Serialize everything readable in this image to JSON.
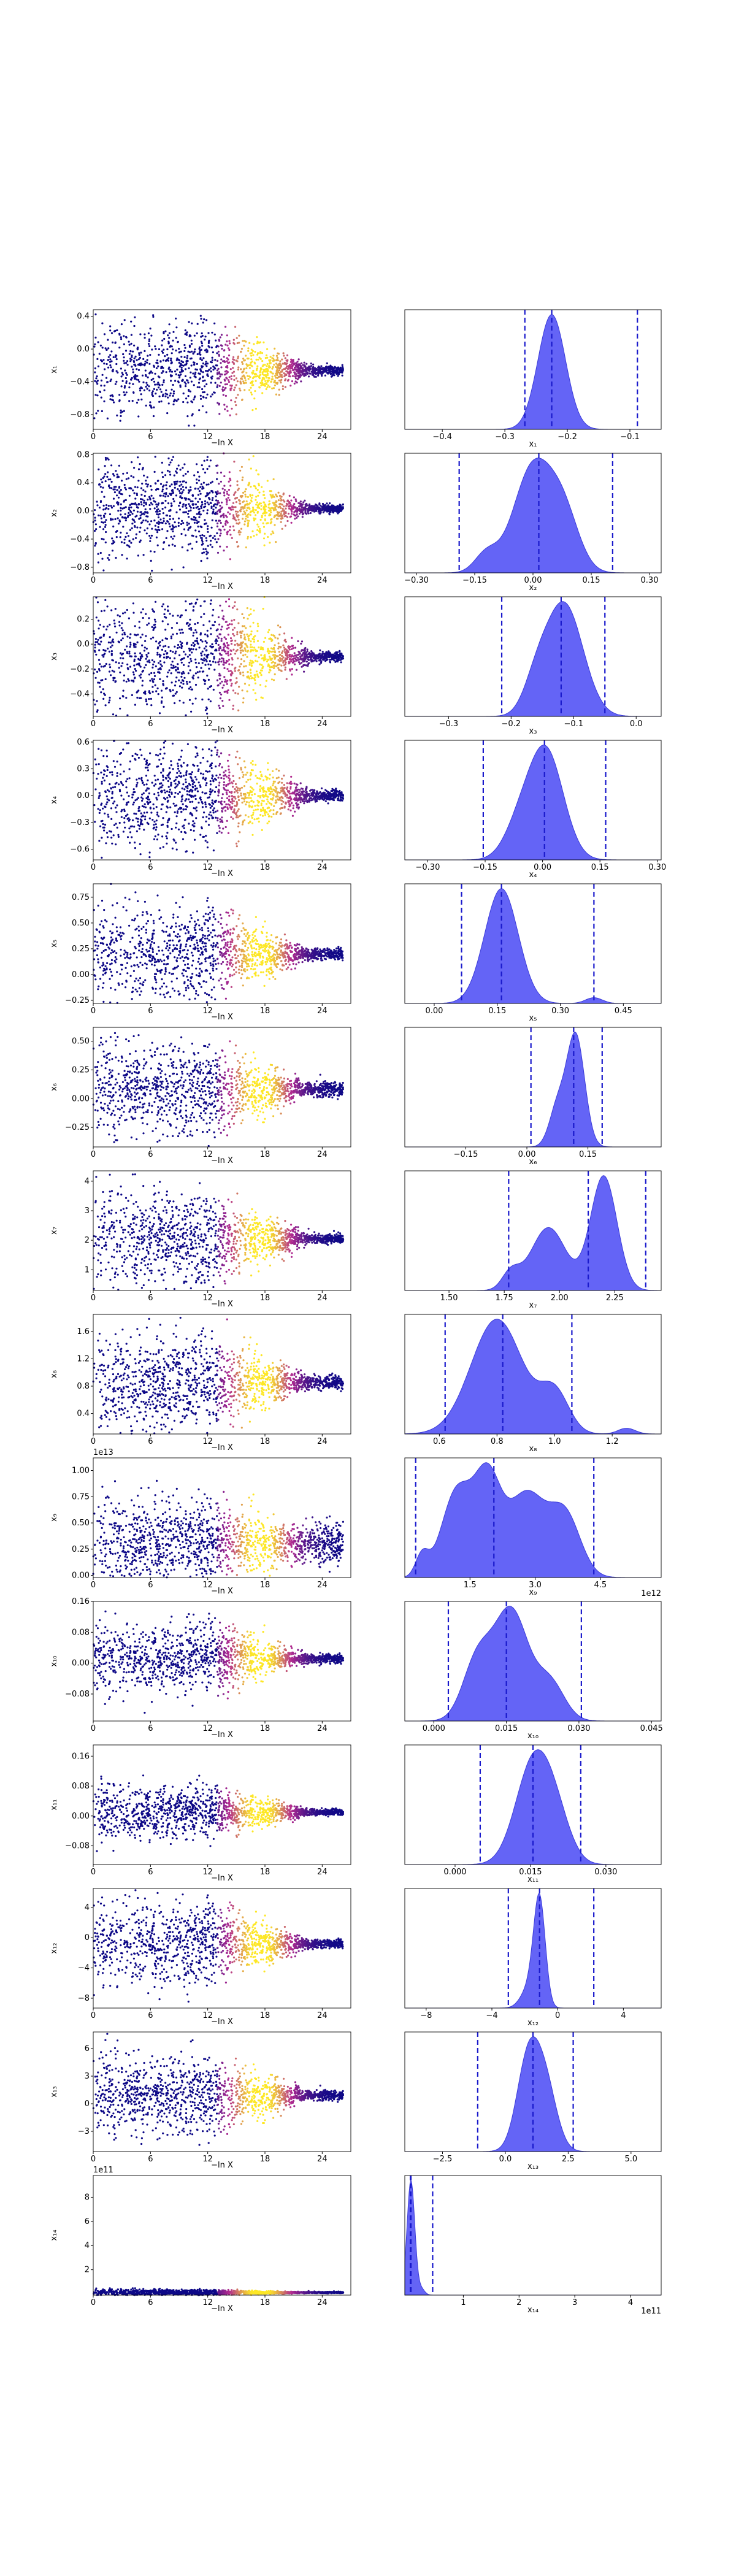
{
  "chart_data": {
    "type": "trace-and-posterior-grid",
    "colors": {
      "trace_low": "#0d0887",
      "trace_mid": "#b12a90",
      "trace_high": "#fde725",
      "kde_fill": "#4f4ff5",
      "kde_edge": "#3b3bd8",
      "vline": "#1a1acc"
    },
    "trace_xlabel": "−ln X",
    "trace_xticks": [
      "0",
      "6",
      "12",
      "18",
      "24"
    ],
    "trace_xlim": [
      0,
      27
    ],
    "rows": [
      {
        "ylabel": "x₁",
        "yticks": [
          "0.4",
          "0.0",
          "−0.4",
          "−0.8"
        ],
        "ytick_values": [
          0.4,
          0.0,
          -0.4,
          -0.8
        ],
        "ylim": [
          -0.98,
          0.48
        ],
        "trace_center": -0.26,
        "trace_spread": 0.28,
        "trace_final_spread": 0.03,
        "trace_sci": "",
        "posterior_xlabel": "x₁",
        "posterior_xticks": [
          "−0.4",
          "−0.3",
          "−0.2",
          "−0.1"
        ],
        "posterior_xtick_values": [
          -0.4,
          -0.3,
          -0.2,
          -0.1
        ],
        "posterior_xlim": [
          -0.46,
          -0.05
        ],
        "posterior_sci": "",
        "kde_peaks": [
          {
            "mu": -0.225,
            "sigma": 0.022,
            "w": 1.0
          }
        ],
        "kde_lines": [
          -0.268,
          -0.225,
          -0.088
        ]
      },
      {
        "ylabel": "x₂",
        "yticks": [
          "0.8",
          "0.4",
          "0.0",
          "−0.4",
          "−0.8"
        ],
        "ytick_values": [
          0.8,
          0.4,
          0.0,
          -0.4,
          -0.8
        ],
        "ylim": [
          -0.88,
          0.82
        ],
        "trace_center": 0.03,
        "trace_spread": 0.35,
        "trace_final_spread": 0.03,
        "trace_sci": "",
        "posterior_xlabel": "x₂",
        "posterior_xticks": [
          "−0.30",
          "−0.15",
          "0.00",
          "0.15",
          "0.30"
        ],
        "posterior_xtick_values": [
          -0.3,
          -0.15,
          0.0,
          0.15,
          0.3
        ],
        "posterior_xlim": [
          -0.33,
          0.33
        ],
        "posterior_sci": "",
        "kde_peaks": [
          {
            "mu": 0.0,
            "sigma": 0.05,
            "w": 1.0
          },
          {
            "mu": 0.08,
            "sigma": 0.04,
            "w": 0.5
          },
          {
            "mu": -0.12,
            "sigma": 0.03,
            "w": 0.18
          }
        ],
        "kde_lines": [
          -0.19,
          0.015,
          0.205
        ]
      },
      {
        "ylabel": "x₃",
        "yticks": [
          "0.2",
          "0.0",
          "−0.2",
          "−0.4"
        ],
        "ytick_values": [
          0.2,
          0.0,
          -0.2,
          -0.4
        ],
        "ylim": [
          -0.58,
          0.38
        ],
        "trace_center": -0.1,
        "trace_spread": 0.25,
        "trace_final_spread": 0.02,
        "trace_sci": "",
        "posterior_xlabel": "x₃",
        "posterior_xticks": [
          "−0.3",
          "−0.2",
          "−0.1",
          "0.0"
        ],
        "posterior_xtick_values": [
          -0.3,
          -0.2,
          -0.1,
          0.0
        ],
        "posterior_xlim": [
          -0.37,
          0.04
        ],
        "posterior_sci": "",
        "kde_peaks": [
          {
            "mu": -0.115,
            "sigma": 0.03,
            "w": 1.0
          },
          {
            "mu": -0.16,
            "sigma": 0.02,
            "w": 0.25
          }
        ],
        "kde_lines": [
          -0.215,
          -0.12,
          -0.05
        ]
      },
      {
        "ylabel": "x₄",
        "yticks": [
          "0.6",
          "0.3",
          "0.0",
          "−0.3",
          "−0.6"
        ],
        "ytick_values": [
          0.6,
          0.3,
          0.0,
          -0.3,
          -0.6
        ],
        "ylim": [
          -0.72,
          0.62
        ],
        "trace_center": 0.0,
        "trace_spread": 0.3,
        "trace_final_spread": 0.03,
        "trace_sci": "",
        "posterior_xlabel": "x₄",
        "posterior_xticks": [
          "−0.30",
          "−0.15",
          "0.00",
          "0.15",
          "0.30"
        ],
        "posterior_xtick_values": [
          -0.3,
          -0.15,
          0.0,
          0.15,
          0.3
        ],
        "posterior_xlim": [
          -0.36,
          0.31
        ],
        "posterior_sci": "",
        "kde_peaks": [
          {
            "mu": 0.01,
            "sigma": 0.045,
            "w": 1.0
          },
          {
            "mu": -0.06,
            "sigma": 0.04,
            "w": 0.3
          }
        ],
        "kde_lines": [
          -0.155,
          0.005,
          0.165
        ]
      },
      {
        "ylabel": "x₅",
        "yticks": [
          "0.75",
          "0.50",
          "0.25",
          "0.00",
          "−0.25"
        ],
        "ytick_values": [
          0.75,
          0.5,
          0.25,
          0.0,
          -0.25
        ],
        "ylim": [
          -0.28,
          0.88
        ],
        "trace_center": 0.2,
        "trace_spread": 0.22,
        "trace_final_spread": 0.03,
        "trace_sci": "",
        "posterior_xlabel": "x₅",
        "posterior_xticks": [
          "0.00",
          "0.15",
          "0.30",
          "0.45"
        ],
        "posterior_xtick_values": [
          0.0,
          0.15,
          0.3,
          0.45
        ],
        "posterior_xlim": [
          -0.07,
          0.54
        ],
        "posterior_sci": "",
        "kde_peaks": [
          {
            "mu": 0.16,
            "sigma": 0.04,
            "w": 1.0
          },
          {
            "mu": 0.38,
            "sigma": 0.02,
            "w": 0.05
          }
        ],
        "kde_lines": [
          0.065,
          0.16,
          0.38
        ]
      },
      {
        "ylabel": "x₆",
        "yticks": [
          "0.50",
          "0.25",
          "0.00",
          "−0.25"
        ],
        "ytick_values": [
          0.5,
          0.25,
          0.0,
          -0.25
        ],
        "ylim": [
          -0.42,
          0.62
        ],
        "trace_center": 0.08,
        "trace_spread": 0.2,
        "trace_final_spread": 0.03,
        "trace_sci": "",
        "posterior_xlabel": "x₆",
        "posterior_xticks": [
          "−0.15",
          "0.00",
          "0.15"
        ],
        "posterior_xtick_values": [
          -0.15,
          0.0,
          0.15
        ],
        "posterior_xlim": [
          -0.3,
          0.33
        ],
        "posterior_sci": "",
        "kde_peaks": [
          {
            "mu": 0.12,
            "sigma": 0.022,
            "w": 1.0
          },
          {
            "mu": 0.075,
            "sigma": 0.02,
            "w": 0.35
          }
        ],
        "kde_lines": [
          0.01,
          0.115,
          0.185
        ]
      },
      {
        "ylabel": "x₇",
        "yticks": [
          "4",
          "3",
          "2",
          "1"
        ],
        "ytick_values": [
          4,
          3,
          2,
          1
        ],
        "ylim": [
          0.3,
          4.35
        ],
        "trace_center": 2.05,
        "trace_spread": 0.75,
        "trace_final_spread": 0.08,
        "trace_sci": "",
        "posterior_xlabel": "x₇",
        "posterior_xticks": [
          "1.50",
          "1.75",
          "2.00",
          "2.25"
        ],
        "posterior_xtick_values": [
          1.5,
          1.75,
          2.0,
          2.25
        ],
        "posterior_xlim": [
          1.3,
          2.46
        ],
        "posterior_sci": "",
        "kde_peaks": [
          {
            "mu": 2.2,
            "sigma": 0.06,
            "w": 1.0
          },
          {
            "mu": 1.95,
            "sigma": 0.08,
            "w": 0.55
          },
          {
            "mu": 1.78,
            "sigma": 0.04,
            "w": 0.15
          }
        ],
        "kde_lines": [
          1.77,
          2.13,
          2.39
        ]
      },
      {
        "ylabel": "x₈",
        "yticks": [
          "1.6",
          "1.2",
          "0.8",
          "0.4"
        ],
        "ytick_values": [
          1.6,
          1.2,
          0.8,
          0.4
        ],
        "ylim": [
          0.1,
          1.85
        ],
        "trace_center": 0.85,
        "trace_spread": 0.35,
        "trace_final_spread": 0.05,
        "trace_sci": "",
        "posterior_xlabel": "x₈",
        "posterior_xticks": [
          "0.6",
          "0.8",
          "1.0",
          "1.2"
        ],
        "posterior_xtick_values": [
          0.6,
          0.8,
          1.0,
          1.2
        ],
        "posterior_xlim": [
          0.48,
          1.37
        ],
        "posterior_sci": "",
        "kde_peaks": [
          {
            "mu": 0.8,
            "sigma": 0.09,
            "w": 1.0
          },
          {
            "mu": 1.0,
            "sigma": 0.05,
            "w": 0.35
          },
          {
            "mu": 1.25,
            "sigma": 0.03,
            "w": 0.05
          }
        ],
        "kde_lines": [
          0.62,
          0.82,
          1.06
        ]
      },
      {
        "ylabel": "x₉",
        "yticks": [
          "1.00",
          "0.75",
          "0.50",
          "0.25",
          "0.00"
        ],
        "ytick_values": [
          1.0,
          0.75,
          0.5,
          0.25,
          0.0
        ],
        "ylim": [
          -0.02,
          1.12
        ],
        "trace_center": 0.3,
        "trace_spread": 0.22,
        "trace_final_spread": 0.1,
        "trace_sci": "1e13",
        "posterior_xlabel": "x₉",
        "posterior_xticks": [
          "1.5",
          "3.0",
          "4.5"
        ],
        "posterior_xtick_values": [
          1.5,
          3.0,
          4.5
        ],
        "posterior_xlim": [
          0.0,
          5.9
        ],
        "posterior_sci": "1e12",
        "kde_peaks": [
          {
            "mu": 1.2,
            "sigma": 0.35,
            "w": 0.8
          },
          {
            "mu": 1.9,
            "sigma": 0.3,
            "w": 0.85
          },
          {
            "mu": 2.8,
            "sigma": 0.45,
            "w": 0.78
          },
          {
            "mu": 3.7,
            "sigma": 0.35,
            "w": 0.55
          },
          {
            "mu": 0.4,
            "sigma": 0.15,
            "w": 0.2
          }
        ],
        "kde_lines": [
          0.25,
          2.05,
          4.35
        ]
      },
      {
        "ylabel": "x₁₀",
        "yticks": [
          "0.16",
          "0.08",
          "0.00",
          "−0.08"
        ],
        "ytick_values": [
          0.16,
          0.08,
          0.0,
          -0.08
        ],
        "ylim": [
          -0.15,
          0.16
        ],
        "trace_center": 0.012,
        "trace_spread": 0.045,
        "trace_final_spread": 0.006,
        "trace_sci": "",
        "posterior_xlabel": "x₁₀",
        "posterior_xticks": [
          "0.000",
          "0.015",
          "0.030",
          "0.045"
        ],
        "posterior_xtick_values": [
          0.0,
          0.015,
          0.03,
          0.045
        ],
        "posterior_xlim": [
          -0.006,
          0.047
        ],
        "posterior_sci": "",
        "kde_peaks": [
          {
            "mu": 0.016,
            "sigma": 0.0035,
            "w": 1.0
          },
          {
            "mu": 0.009,
            "sigma": 0.003,
            "w": 0.55
          },
          {
            "mu": 0.024,
            "sigma": 0.003,
            "w": 0.35
          }
        ],
        "kde_lines": [
          0.003,
          0.015,
          0.0305
        ]
      },
      {
        "ylabel": "x₁₁",
        "yticks": [
          "0.16",
          "0.08",
          "0.00",
          "−0.08"
        ],
        "ytick_values": [
          0.16,
          0.08,
          0.0,
          -0.08
        ],
        "ylim": [
          -0.13,
          0.19
        ],
        "trace_center": 0.01,
        "trace_spread": 0.035,
        "trace_final_spread": 0.004,
        "trace_sci": "",
        "posterior_xlabel": "x₁₁",
        "posterior_xticks": [
          "0.000",
          "0.015",
          "0.030"
        ],
        "posterior_xtick_values": [
          0.0,
          0.015,
          0.03
        ],
        "posterior_xlim": [
          -0.01,
          0.041
        ],
        "posterior_sci": "",
        "kde_peaks": [
          {
            "mu": 0.0155,
            "sigma": 0.0035,
            "w": 1.0
          },
          {
            "mu": 0.02,
            "sigma": 0.003,
            "w": 0.4
          }
        ],
        "kde_lines": [
          0.005,
          0.0155,
          0.025
        ]
      },
      {
        "ylabel": "x₁₂",
        "yticks": [
          "4",
          "0",
          "−4",
          "−8"
        ],
        "ytick_values": [
          4,
          0,
          -4,
          -8
        ],
        "ylim": [
          -9.3,
          6.5
        ],
        "trace_center": -0.8,
        "trace_spread": 2.6,
        "trace_final_spread": 0.3,
        "trace_sci": "",
        "posterior_xlabel": "x₁₂",
        "posterior_xticks": [
          "−8",
          "−4",
          "0",
          "4"
        ],
        "posterior_xtick_values": [
          -8,
          -4,
          0,
          4
        ],
        "posterior_xlim": [
          -9.3,
          6.3
        ],
        "posterior_sci": "",
        "kde_peaks": [
          {
            "mu": -1.1,
            "sigma": 0.35,
            "w": 1.0
          },
          {
            "mu": -1.7,
            "sigma": 0.5,
            "w": 0.2
          }
        ],
        "kde_lines": [
          -3.0,
          -1.1,
          2.2
        ]
      },
      {
        "ylabel": "x₁₃",
        "yticks": [
          "6",
          "3",
          "0",
          "−3"
        ],
        "ytick_values": [
          6,
          3,
          0,
          -3
        ],
        "ylim": [
          -5.2,
          7.8
        ],
        "trace_center": 0.9,
        "trace_spread": 2.1,
        "trace_final_spread": 0.25,
        "trace_sci": "",
        "posterior_xlabel": "x₁₃",
        "posterior_xticks": [
          "−2.5",
          "0.0",
          "2.5",
          "5.0"
        ],
        "posterior_xtick_values": [
          -2.5,
          0.0,
          2.5,
          5.0
        ],
        "posterior_xlim": [
          -4.0,
          6.2
        ],
        "posterior_sci": "",
        "kde_peaks": [
          {
            "mu": 0.9,
            "sigma": 0.45,
            "w": 1.0
          },
          {
            "mu": 1.6,
            "sigma": 0.45,
            "w": 0.7
          }
        ],
        "kde_lines": [
          -1.1,
          1.1,
          2.7
        ]
      },
      {
        "ylabel": "x₁₄",
        "yticks": [
          "8",
          "6",
          "4",
          "2"
        ],
        "ytick_values": [
          8,
          6,
          4,
          2
        ],
        "ylim": [
          -0.1,
          9.8
        ],
        "trace_center": 0.12,
        "trace_spread": 0.12,
        "trace_final_spread": 0.03,
        "trace_sci": "1e11",
        "posterior_xlabel": "x₁₄",
        "posterior_xticks": [
          "1",
          "2",
          "3",
          "4"
        ],
        "posterior_xtick_values": [
          1,
          2,
          3,
          4
        ],
        "posterior_xlim": [
          -0.05,
          4.55
        ],
        "posterior_sci": "1e11",
        "kde_peaks": [
          {
            "mu": 0.06,
            "sigma": 0.07,
            "w": 1.0
          },
          {
            "mu": 0.25,
            "sigma": 0.06,
            "w": 0.05
          }
        ],
        "kde_lines": [
          0.05,
          0.06,
          0.45
        ]
      }
    ]
  }
}
